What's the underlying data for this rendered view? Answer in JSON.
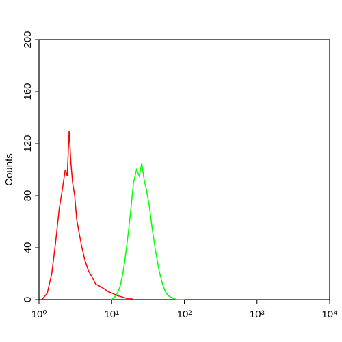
{
  "chart_data": {
    "type": "line",
    "ylabel": "Counts",
    "xscale": "log",
    "xlim": [
      1,
      10000
    ],
    "xticks": [
      {
        "value": 1,
        "label": "10⁰"
      },
      {
        "value": 10,
        "label": "10¹"
      },
      {
        "value": 100,
        "label": "10²"
      },
      {
        "value": 1000,
        "label": "10³"
      },
      {
        "value": 10000,
        "label": "10⁴"
      }
    ],
    "ylim": [
      0,
      200
    ],
    "yticks": [
      0,
      40,
      80,
      120,
      160,
      200
    ],
    "series": [
      {
        "color": "#ff0000",
        "x": [
          1.1,
          1.3,
          1.5,
          1.7,
          1.9,
          2.1,
          2.3,
          2.45,
          2.6,
          2.75,
          2.9,
          3.1,
          3.3,
          3.6,
          3.9,
          4.3,
          4.8,
          5.3,
          6,
          7,
          8,
          9,
          10,
          11,
          12,
          14,
          16,
          18,
          20
        ],
        "values": [
          0,
          5,
          20,
          45,
          70,
          85,
          100,
          95,
          130,
          105,
          90,
          80,
          62,
          50,
          40,
          30,
          22,
          18,
          12,
          10,
          8,
          6,
          5,
          4,
          3,
          2,
          1,
          1,
          0
        ]
      },
      {
        "color": "#00ff00",
        "x": [
          10,
          11,
          12,
          13,
          14,
          15,
          16,
          17,
          18,
          19,
          20,
          22,
          24,
          26,
          28,
          30,
          33,
          36,
          40,
          45,
          50,
          55,
          60,
          70,
          80,
          100
        ],
        "values": [
          0,
          2,
          5,
          10,
          18,
          28,
          40,
          52,
          65,
          78,
          90,
          100,
          95,
          105,
          92,
          85,
          72,
          55,
          38,
          22,
          12,
          6,
          3,
          1,
          0,
          0
        ]
      }
    ]
  }
}
